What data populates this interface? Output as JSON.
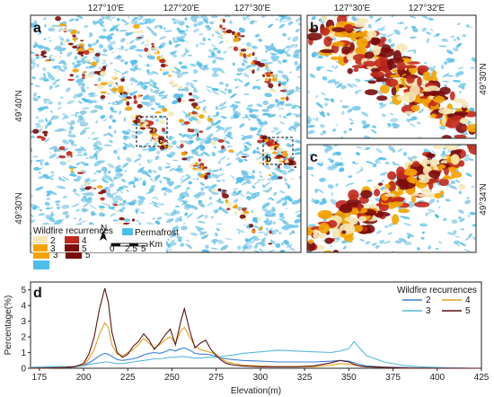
{
  "maps": {
    "top_lon_ticks": [
      "127°10'E",
      "127°20'E",
      "127°30'E",
      "127°30'E",
      "127°32'E"
    ],
    "lat_ticks_left": [
      "49°40'N",
      "49°30'N"
    ],
    "lat_ticks_right": [
      "49°30'N",
      "49°34'N"
    ],
    "panel_labels": {
      "a": "a",
      "b": "b",
      "c": "c",
      "d": "d"
    },
    "inset_labels": {
      "c": "c",
      "b": "b"
    },
    "legend": {
      "title": "Wildfire recurrences",
      "items": [
        {
          "label": "2",
          "color": "#f6e7b5"
        },
        {
          "label": "4",
          "color": "#c0281c"
        },
        {
          "label": "3",
          "color": "#f3a300"
        },
        {
          "label": "5",
          "color": "#7a0c0c"
        },
        {
          "label": "Permafrost",
          "color": "#4fbde9"
        }
      ],
      "north": "N",
      "scale_labels": [
        "0",
        "2.5",
        "5"
      ],
      "scale_unit": "Km"
    }
  },
  "chart_data": {
    "type": "line",
    "xlabel": "Elevation(m)",
    "ylabel": "Percentage(%)",
    "xlim": [
      170,
      425
    ],
    "ylim": [
      0,
      5.5
    ],
    "xticks": [
      175,
      200,
      225,
      250,
      275,
      300,
      325,
      350,
      375,
      400,
      425
    ],
    "yticks": [
      0,
      1,
      2,
      3,
      4,
      5
    ],
    "legend_title": "Wildfire recurrences",
    "x": [
      170,
      180,
      190,
      195,
      200,
      203,
      206,
      209,
      212,
      214,
      216,
      219,
      222,
      225,
      228,
      231,
      234,
      237,
      240,
      243,
      246,
      249,
      252,
      255,
      257,
      260,
      263,
      266,
      269,
      272,
      275,
      278,
      281,
      285,
      290,
      300,
      310,
      320,
      330,
      340,
      345,
      350,
      353,
      356,
      360,
      370,
      380,
      390,
      400,
      410,
      420,
      425
    ],
    "series": [
      {
        "name": "2",
        "color": "#3f7fd6",
        "values": [
          0.05,
          0.1,
          0.1,
          0.12,
          0.2,
          0.35,
          0.55,
          0.8,
          0.95,
          0.9,
          0.75,
          0.55,
          0.5,
          0.55,
          0.6,
          0.7,
          0.85,
          0.95,
          1.0,
          0.95,
          1.05,
          1.2,
          1.1,
          1.25,
          1.3,
          1.15,
          0.95,
          0.9,
          0.9,
          0.85,
          0.75,
          0.65,
          0.6,
          0.55,
          0.5,
          0.45,
          0.4,
          0.4,
          0.4,
          0.45,
          0.5,
          0.45,
          0.35,
          0.25,
          0.15,
          0.08,
          0.05,
          0.03,
          0.02,
          0.01,
          0.0,
          0.0
        ]
      },
      {
        "name": "4",
        "color": "#e0a020",
        "values": [
          0.0,
          0.02,
          0.05,
          0.08,
          0.2,
          0.6,
          1.2,
          2.2,
          2.9,
          2.6,
          1.5,
          0.9,
          0.8,
          1.0,
          1.2,
          1.5,
          1.9,
          1.6,
          1.3,
          1.5,
          1.8,
          2.0,
          1.6,
          2.4,
          2.6,
          2.0,
          1.4,
          1.2,
          1.1,
          1.0,
          0.9,
          0.6,
          0.4,
          0.3,
          0.2,
          0.15,
          0.1,
          0.1,
          0.1,
          0.2,
          0.3,
          0.25,
          0.2,
          0.15,
          0.1,
          0.05,
          0.02,
          0.01,
          0.0,
          0.0,
          0.0,
          0.0
        ]
      },
      {
        "name": "3",
        "color": "#59b8d8",
        "values": [
          0.05,
          0.1,
          0.1,
          0.1,
          0.15,
          0.25,
          0.3,
          0.35,
          0.4,
          0.4,
          0.35,
          0.3,
          0.3,
          0.35,
          0.4,
          0.45,
          0.5,
          0.55,
          0.6,
          0.6,
          0.65,
          0.7,
          0.7,
          0.75,
          0.75,
          0.7,
          0.65,
          0.65,
          0.7,
          0.7,
          0.7,
          0.75,
          0.8,
          0.85,
          0.95,
          1.05,
          1.15,
          1.1,
          1.05,
          1.0,
          1.1,
          1.25,
          1.7,
          1.3,
          0.8,
          0.4,
          0.2,
          0.1,
          0.05,
          0.02,
          0.0,
          0.0
        ]
      },
      {
        "name": "5",
        "color": "#5a1212",
        "values": [
          0.0,
          0.02,
          0.05,
          0.1,
          0.3,
          0.9,
          2.0,
          3.8,
          5.1,
          4.2,
          2.3,
          1.0,
          0.7,
          0.9,
          1.4,
          1.7,
          2.2,
          1.8,
          1.2,
          1.6,
          2.1,
          2.5,
          1.5,
          3.0,
          3.8,
          2.4,
          1.3,
          1.6,
          1.8,
          1.2,
          0.8,
          0.5,
          0.3,
          0.2,
          0.15,
          0.1,
          0.1,
          0.1,
          0.15,
          0.35,
          0.5,
          0.4,
          0.25,
          0.15,
          0.1,
          0.05,
          0.02,
          0.0,
          0.0,
          0.0,
          0.0,
          0.0
        ]
      }
    ],
    "legend_order": [
      "2",
      "4",
      "3",
      "5"
    ]
  }
}
